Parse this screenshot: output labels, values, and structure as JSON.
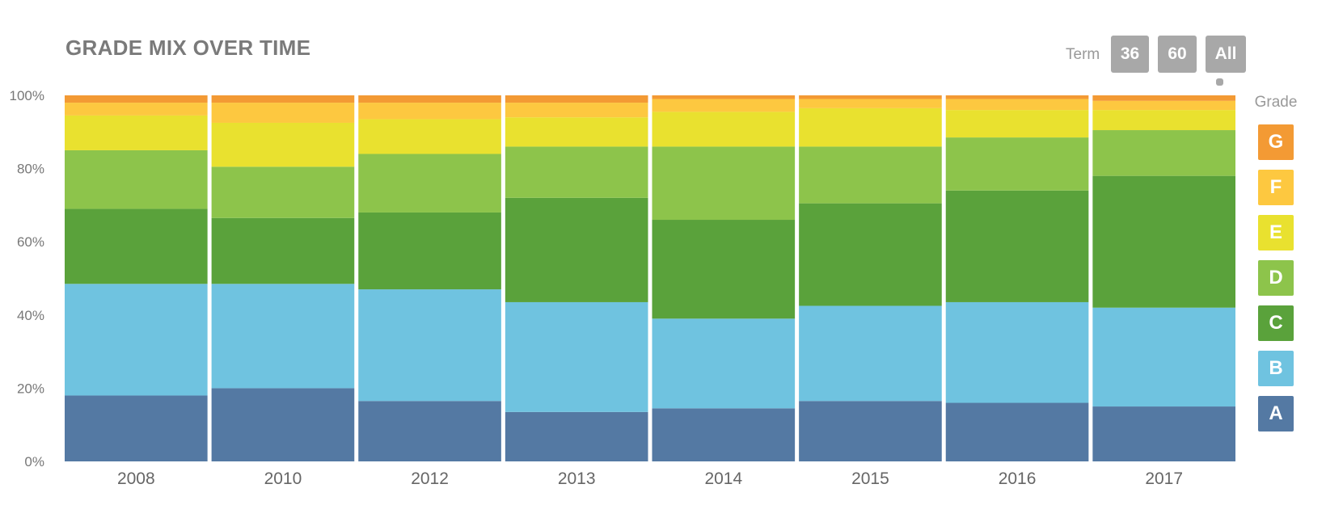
{
  "header": {
    "title": "GRADE MIX OVER TIME"
  },
  "term": {
    "label": "Term",
    "options": [
      "36",
      "60",
      "All"
    ],
    "selected": "All"
  },
  "legend": {
    "title": "Grade",
    "items": [
      {
        "name": "G",
        "color": "#f39a34"
      },
      {
        "name": "F",
        "color": "#fdc840"
      },
      {
        "name": "E",
        "color": "#e9e12f"
      },
      {
        "name": "D",
        "color": "#8dc44b"
      },
      {
        "name": "C",
        "color": "#5aa23b"
      },
      {
        "name": "B",
        "color": "#6fc3e0"
      },
      {
        "name": "A",
        "color": "#5479a3"
      }
    ]
  },
  "chart_data": {
    "type": "bar",
    "stacked": true,
    "normalized": true,
    "categories": [
      "2008",
      "2010",
      "2012",
      "2013",
      "2014",
      "2015",
      "2016",
      "2017"
    ],
    "yticks": [
      "0%",
      "20%",
      "40%",
      "60%",
      "80%",
      "100%"
    ],
    "ylim": [
      0,
      100
    ],
    "grid": false,
    "legend_position": "right",
    "series": [
      {
        "name": "A",
        "color": "#5479a3",
        "values": [
          18.0,
          20.0,
          16.5,
          13.5,
          14.5,
          16.5,
          16.0,
          15.0
        ]
      },
      {
        "name": "B",
        "color": "#6fc3e0",
        "values": [
          30.5,
          28.5,
          30.5,
          30.0,
          24.5,
          26.0,
          27.5,
          27.0
        ]
      },
      {
        "name": "C",
        "color": "#5aa23b",
        "values": [
          20.5,
          18.0,
          21.0,
          28.5,
          27.0,
          28.0,
          30.5,
          36.0
        ]
      },
      {
        "name": "D",
        "color": "#8dc44b",
        "values": [
          16.0,
          14.0,
          16.0,
          14.0,
          20.0,
          15.5,
          14.5,
          12.5
        ]
      },
      {
        "name": "E",
        "color": "#e9e12f",
        "values": [
          9.5,
          12.0,
          9.5,
          8.0,
          9.5,
          10.5,
          7.5,
          5.5
        ]
      },
      {
        "name": "F",
        "color": "#fdc840",
        "values": [
          3.5,
          5.5,
          4.5,
          4.0,
          3.5,
          2.5,
          3.0,
          2.5
        ]
      },
      {
        "name": "G",
        "color": "#f39a34",
        "values": [
          2.0,
          2.0,
          2.0,
          2.0,
          1.0,
          1.0,
          1.0,
          1.5
        ]
      }
    ]
  }
}
